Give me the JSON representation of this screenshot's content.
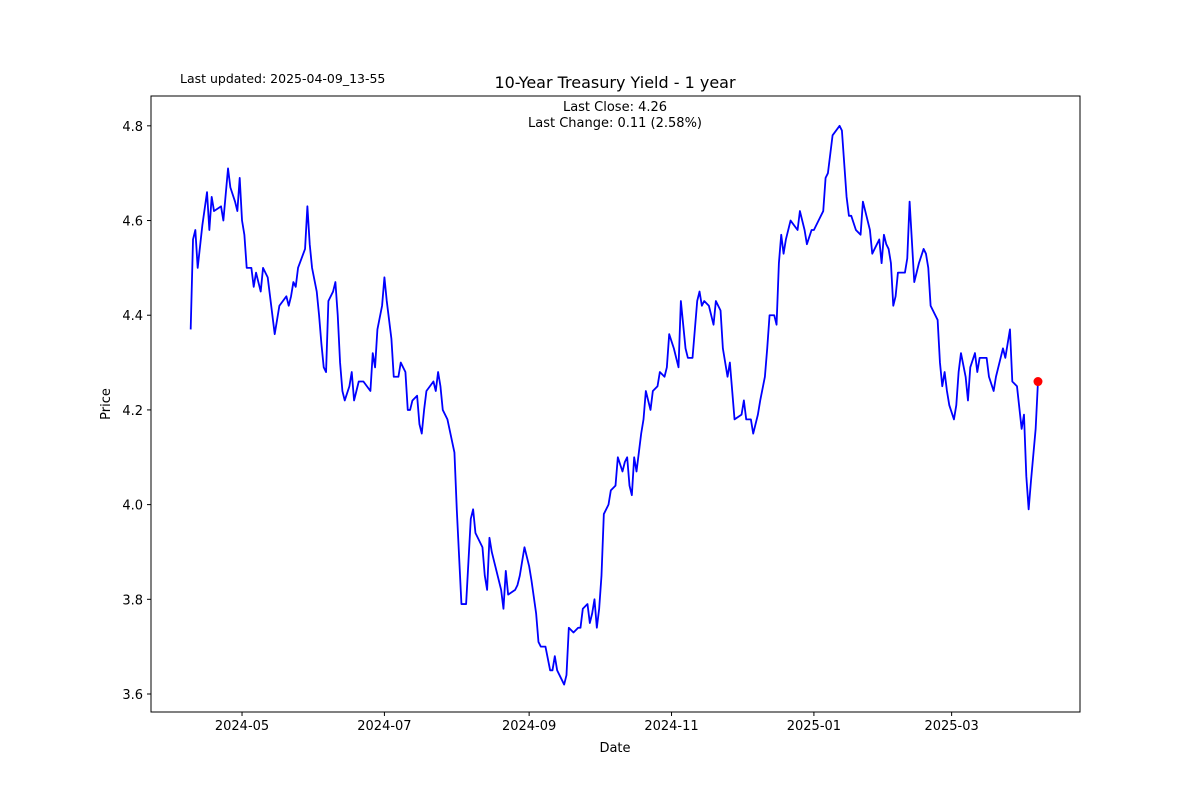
{
  "chart_data": {
    "type": "line",
    "title": "10-Year Treasury Yield - 1 year",
    "subtitle": "Last updated: 2025-04-09_13-55",
    "annotations": [
      "Last Close: 4.26",
      "Last Change: 0.11 (2.58%)"
    ],
    "x_label": "Date",
    "y_label": "Price",
    "x": [
      "2024-04-09",
      "2024-04-10",
      "2024-04-11",
      "2024-04-12",
      "2024-04-14",
      "2024-04-16",
      "2024-04-17",
      "2024-04-18",
      "2024-04-19",
      "2024-04-22",
      "2024-04-23",
      "2024-04-25",
      "2024-04-26",
      "2024-04-28",
      "2024-04-29",
      "2024-04-30",
      "2024-05-01",
      "2024-05-02",
      "2024-05-03",
      "2024-05-05",
      "2024-05-06",
      "2024-05-07",
      "2024-05-09",
      "2024-05-10",
      "2024-05-12",
      "2024-05-13",
      "2024-05-15",
      "2024-05-16",
      "2024-05-17",
      "2024-05-20",
      "2024-05-21",
      "2024-05-22",
      "2024-05-23",
      "2024-05-24",
      "2024-05-25",
      "2024-05-28",
      "2024-05-29",
      "2024-05-30",
      "2024-05-31",
      "2024-06-02",
      "2024-06-03",
      "2024-06-04",
      "2024-06-05",
      "2024-06-06",
      "2024-06-07",
      "2024-06-09",
      "2024-06-10",
      "2024-06-11",
      "2024-06-12",
      "2024-06-13",
      "2024-06-14",
      "2024-06-16",
      "2024-06-17",
      "2024-06-18",
      "2024-06-19",
      "2024-06-20",
      "2024-06-22",
      "2024-06-25",
      "2024-06-26",
      "2024-06-27",
      "2024-06-28",
      "2024-06-30",
      "2024-07-01",
      "2024-07-02",
      "2024-07-04",
      "2024-07-05",
      "2024-07-07",
      "2024-07-08",
      "2024-07-10",
      "2024-07-11",
      "2024-07-12",
      "2024-07-13",
      "2024-07-15",
      "2024-07-16",
      "2024-07-17",
      "2024-07-18",
      "2024-07-19",
      "2024-07-22",
      "2024-07-23",
      "2024-07-24",
      "2024-07-25",
      "2024-07-26",
      "2024-07-28",
      "2024-07-31",
      "2024-08-01",
      "2024-08-03",
      "2024-08-05",
      "2024-08-06",
      "2024-08-07",
      "2024-08-08",
      "2024-08-09",
      "2024-08-12",
      "2024-08-13",
      "2024-08-14",
      "2024-08-15",
      "2024-08-16",
      "2024-08-17",
      "2024-08-18",
      "2024-08-20",
      "2024-08-21",
      "2024-08-22",
      "2024-08-23",
      "2024-08-26",
      "2024-08-27",
      "2024-08-28",
      "2024-08-30",
      "2024-08-31",
      "2024-09-01",
      "2024-09-02",
      "2024-09-04",
      "2024-09-05",
      "2024-09-06",
      "2024-09-08",
      "2024-09-10",
      "2024-09-11",
      "2024-09-12",
      "2024-09-13",
      "2024-09-15",
      "2024-09-16",
      "2024-09-17",
      "2024-09-18",
      "2024-09-20",
      "2024-09-22",
      "2024-09-23",
      "2024-09-24",
      "2024-09-26",
      "2024-09-27",
      "2024-09-28",
      "2024-09-29",
      "2024-09-30",
      "2024-10-01",
      "2024-10-02",
      "2024-10-03",
      "2024-10-05",
      "2024-10-06",
      "2024-10-08",
      "2024-10-09",
      "2024-10-11",
      "2024-10-12",
      "2024-10-13",
      "2024-10-14",
      "2024-10-15",
      "2024-10-16",
      "2024-10-17",
      "2024-10-19",
      "2024-10-20",
      "2024-10-21",
      "2024-10-23",
      "2024-10-24",
      "2024-10-26",
      "2024-10-27",
      "2024-10-29",
      "2024-10-30",
      "2024-10-31",
      "2024-11-02",
      "2024-11-04",
      "2024-11-05",
      "2024-11-07",
      "2024-11-08",
      "2024-11-10",
      "2024-11-11",
      "2024-11-12",
      "2024-11-13",
      "2024-11-14",
      "2024-11-15",
      "2024-11-17",
      "2024-11-19",
      "2024-11-20",
      "2024-11-22",
      "2024-11-23",
      "2024-11-25",
      "2024-11-26",
      "2024-11-27",
      "2024-11-28",
      "2024-12-01",
      "2024-12-02",
      "2024-12-03",
      "2024-12-05",
      "2024-12-06",
      "2024-12-08",
      "2024-12-09",
      "2024-12-11",
      "2024-12-12",
      "2024-12-13",
      "2024-12-15",
      "2024-12-16",
      "2024-12-17",
      "2024-12-18",
      "2024-12-19",
      "2024-12-20",
      "2024-12-22",
      "2024-12-25",
      "2024-12-26",
      "2024-12-28",
      "2024-12-29",
      "2024-12-31",
      "2025-01-01",
      "2025-01-03",
      "2025-01-05",
      "2025-01-06",
      "2025-01-07",
      "2025-01-09",
      "2025-01-12",
      "2025-01-13",
      "2025-01-15",
      "2025-01-16",
      "2025-01-17",
      "2025-01-19",
      "2025-01-21",
      "2025-01-22",
      "2025-01-23",
      "2025-01-25",
      "2025-01-26",
      "2025-01-28",
      "2025-01-29",
      "2025-01-30",
      "2025-01-31",
      "2025-02-01",
      "2025-02-02",
      "2025-02-03",
      "2025-02-04",
      "2025-02-05",
      "2025-02-06",
      "2025-02-09",
      "2025-02-10",
      "2025-02-11",
      "2025-02-13",
      "2025-02-14",
      "2025-02-15",
      "2025-02-17",
      "2025-02-18",
      "2025-02-19",
      "2025-02-20",
      "2025-02-23",
      "2025-02-24",
      "2025-02-25",
      "2025-02-26",
      "2025-02-27",
      "2025-02-28",
      "2025-03-02",
      "2025-03-03",
      "2025-03-04",
      "2025-03-05",
      "2025-03-07",
      "2025-03-08",
      "2025-03-09",
      "2025-03-11",
      "2025-03-12",
      "2025-03-13",
      "2025-03-16",
      "2025-03-17",
      "2025-03-19",
      "2025-03-20",
      "2025-03-22",
      "2025-03-23",
      "2025-03-24",
      "2025-03-26",
      "2025-03-27",
      "2025-03-29",
      "2025-03-31",
      "2025-04-01",
      "2025-04-02",
      "2025-04-03",
      "2025-04-04",
      "2025-04-06",
      "2025-04-07"
    ],
    "series": [
      {
        "color": "#0000ff",
        "last_marker_color": "#ff0000",
        "values": [
          4.37,
          4.56,
          4.58,
          4.5,
          4.59,
          4.66,
          4.58,
          4.65,
          4.62,
          4.63,
          4.6,
          4.71,
          4.67,
          4.64,
          4.62,
          4.69,
          4.6,
          4.57,
          4.5,
          4.5,
          4.46,
          4.49,
          4.45,
          4.5,
          4.48,
          4.44,
          4.36,
          4.39,
          4.42,
          4.44,
          4.42,
          4.44,
          4.47,
          4.46,
          4.5,
          4.54,
          4.63,
          4.55,
          4.5,
          4.45,
          4.4,
          4.34,
          4.29,
          4.28,
          4.43,
          4.45,
          4.47,
          4.4,
          4.3,
          4.24,
          4.22,
          4.25,
          4.28,
          4.22,
          4.24,
          4.26,
          4.26,
          4.24,
          4.32,
          4.29,
          4.37,
          4.42,
          4.48,
          4.43,
          4.35,
          4.27,
          4.27,
          4.3,
          4.28,
          4.2,
          4.2,
          4.22,
          4.23,
          4.17,
          4.15,
          4.2,
          4.24,
          4.26,
          4.24,
          4.28,
          4.25,
          4.2,
          4.18,
          4.11,
          3.99,
          3.79,
          3.79,
          3.88,
          3.97,
          3.99,
          3.94,
          3.91,
          3.85,
          3.82,
          3.93,
          3.9,
          3.88,
          3.86,
          3.82,
          3.78,
          3.86,
          3.81,
          3.82,
          3.83,
          3.85,
          3.91,
          3.89,
          3.87,
          3.84,
          3.77,
          3.71,
          3.7,
          3.7,
          3.65,
          3.65,
          3.68,
          3.65,
          3.63,
          3.62,
          3.64,
          3.74,
          3.73,
          3.74,
          3.74,
          3.78,
          3.79,
          3.75,
          3.77,
          3.8,
          3.74,
          3.78,
          3.85,
          3.98,
          4.0,
          4.03,
          4.04,
          4.1,
          4.07,
          4.09,
          4.1,
          4.04,
          4.02,
          4.1,
          4.07,
          4.15,
          4.18,
          4.24,
          4.2,
          4.24,
          4.25,
          4.28,
          4.27,
          4.29,
          4.36,
          4.33,
          4.29,
          4.43,
          4.33,
          4.31,
          4.31,
          4.37,
          4.43,
          4.45,
          4.42,
          4.43,
          4.42,
          4.38,
          4.43,
          4.41,
          4.33,
          4.27,
          4.3,
          4.24,
          4.18,
          4.19,
          4.22,
          4.18,
          4.18,
          4.15,
          4.19,
          4.22,
          4.27,
          4.33,
          4.4,
          4.4,
          4.38,
          4.51,
          4.57,
          4.53,
          4.56,
          4.6,
          4.58,
          4.62,
          4.58,
          4.55,
          4.58,
          4.58,
          4.6,
          4.62,
          4.69,
          4.7,
          4.78,
          4.8,
          4.79,
          4.65,
          4.61,
          4.61,
          4.58,
          4.57,
          4.64,
          4.62,
          4.58,
          4.53,
          4.55,
          4.56,
          4.51,
          4.57,
          4.55,
          4.54,
          4.51,
          4.42,
          4.44,
          4.49,
          4.49,
          4.52,
          4.64,
          4.47,
          4.49,
          4.51,
          4.54,
          4.53,
          4.5,
          4.42,
          4.39,
          4.3,
          4.25,
          4.28,
          4.24,
          4.21,
          4.18,
          4.21,
          4.28,
          4.32,
          4.27,
          4.22,
          4.29,
          4.32,
          4.28,
          4.31,
          4.31,
          4.27,
          4.24,
          4.27,
          4.31,
          4.33,
          4.31,
          4.37,
          4.26,
          4.25,
          4.16,
          4.19,
          4.06,
          3.99,
          4.05,
          4.16,
          4.26
        ]
      }
    ],
    "xlim": [
      "2024-03-23",
      "2025-04-25"
    ],
    "xticks": [
      {
        "value": "2024-05-01",
        "label": "2024-05"
      },
      {
        "value": "2024-07-01",
        "label": "2024-07"
      },
      {
        "value": "2024-09-01",
        "label": "2024-09"
      },
      {
        "value": "2024-11-01",
        "label": "2024-11"
      },
      {
        "value": "2025-01-01",
        "label": "2025-01"
      },
      {
        "value": "2025-03-01",
        "label": "2025-03"
      }
    ],
    "ylim": [
      3.562,
      4.863
    ],
    "yticks": [
      3.6,
      3.8,
      {
        "value": 4,
        "label": "4.0"
      },
      4.2,
      4.4,
      4.6,
      4.8
    ],
    "grid": false
  }
}
